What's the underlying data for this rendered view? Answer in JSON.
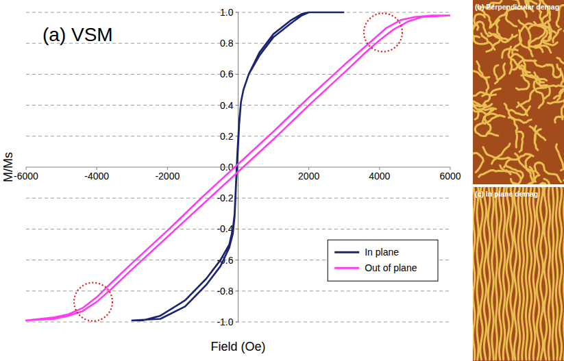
{
  "chart_data": {
    "type": "line",
    "title": "(a) VSM",
    "x_label": "Field (Oe)",
    "y_label": "M/Ms",
    "xlim": [
      -6000,
      6000
    ],
    "xticks": [
      -6000,
      -4000,
      -2000,
      2000,
      4000,
      6000
    ],
    "ylim": [
      -1,
      1
    ],
    "yticks": [
      {
        "value": -1,
        "label": "-1.0"
      },
      -0.8,
      -0.6,
      -0.4,
      -0.2,
      {
        "value": 0,
        "label": "0.0"
      },
      0.2,
      0.4,
      0.6,
      0.8,
      {
        "value": 1,
        "label": "1.0"
      }
    ],
    "grid": true,
    "legend": "lower right",
    "series": [
      {
        "name": "In plane",
        "color": "#1c2472",
        "x": [
          3000,
          2000,
          1800,
          1500,
          1000,
          600,
          300,
          150,
          80,
          30,
          -20,
          -60,
          -100,
          -150,
          -250,
          -500,
          -900,
          -1500,
          -2200,
          -2700,
          -3000,
          -3000,
          -2200,
          -1500,
          -900,
          -500,
          -250,
          -150,
          -100,
          -60,
          -20,
          30,
          80,
          150,
          300,
          600,
          1000,
          1500,
          1800,
          2000,
          3000
        ],
        "values": [
          1.0,
          1.0,
          0.99,
          0.95,
          0.86,
          0.74,
          0.6,
          0.5,
          0.42,
          0.3,
          0.1,
          -0.1,
          -0.3,
          -0.4,
          -0.5,
          -0.6,
          -0.72,
          -0.86,
          -0.96,
          -0.99,
          -0.99,
          -0.99,
          -0.98,
          -0.9,
          -0.76,
          -0.64,
          -0.52,
          -0.43,
          -0.32,
          -0.12,
          0.05,
          0.28,
          0.42,
          0.5,
          0.6,
          0.72,
          0.84,
          0.93,
          0.98,
          1.0,
          1.0
        ]
      },
      {
        "name": "Out of plane",
        "color": "#ff3cf0",
        "x": [
          6000,
          5500,
          5000,
          4600,
          4200,
          3800,
          3000,
          2000,
          1000,
          0,
          -1000,
          -2000,
          -3000,
          -3600,
          -4000,
          -4400,
          -4800,
          -5200,
          -6000,
          -6000,
          -5200,
          -4800,
          -4400,
          -4000,
          -3600,
          -3000,
          -2000,
          -1000,
          0,
          1000,
          2000,
          3000,
          3600,
          4000,
          4400,
          4800,
          5200,
          6000
        ],
        "values": [
          0.98,
          0.98,
          0.97,
          0.95,
          0.9,
          0.82,
          0.66,
          0.45,
          0.23,
          0.02,
          -0.19,
          -0.41,
          -0.62,
          -0.75,
          -0.84,
          -0.91,
          -0.95,
          -0.97,
          -0.99,
          -0.99,
          -0.98,
          -0.96,
          -0.93,
          -0.87,
          -0.79,
          -0.66,
          -0.45,
          -0.24,
          -0.03,
          0.18,
          0.4,
          0.61,
          0.74,
          0.82,
          0.89,
          0.94,
          0.97,
          0.98
        ]
      }
    ],
    "highlights": [
      {
        "x": 4100,
        "y": 0.87
      },
      {
        "x": -4100,
        "y": -0.87
      }
    ]
  },
  "images": [
    {
      "title": "(b) Perpendicular demag"
    },
    {
      "title": "(c) In plane demag"
    }
  ]
}
